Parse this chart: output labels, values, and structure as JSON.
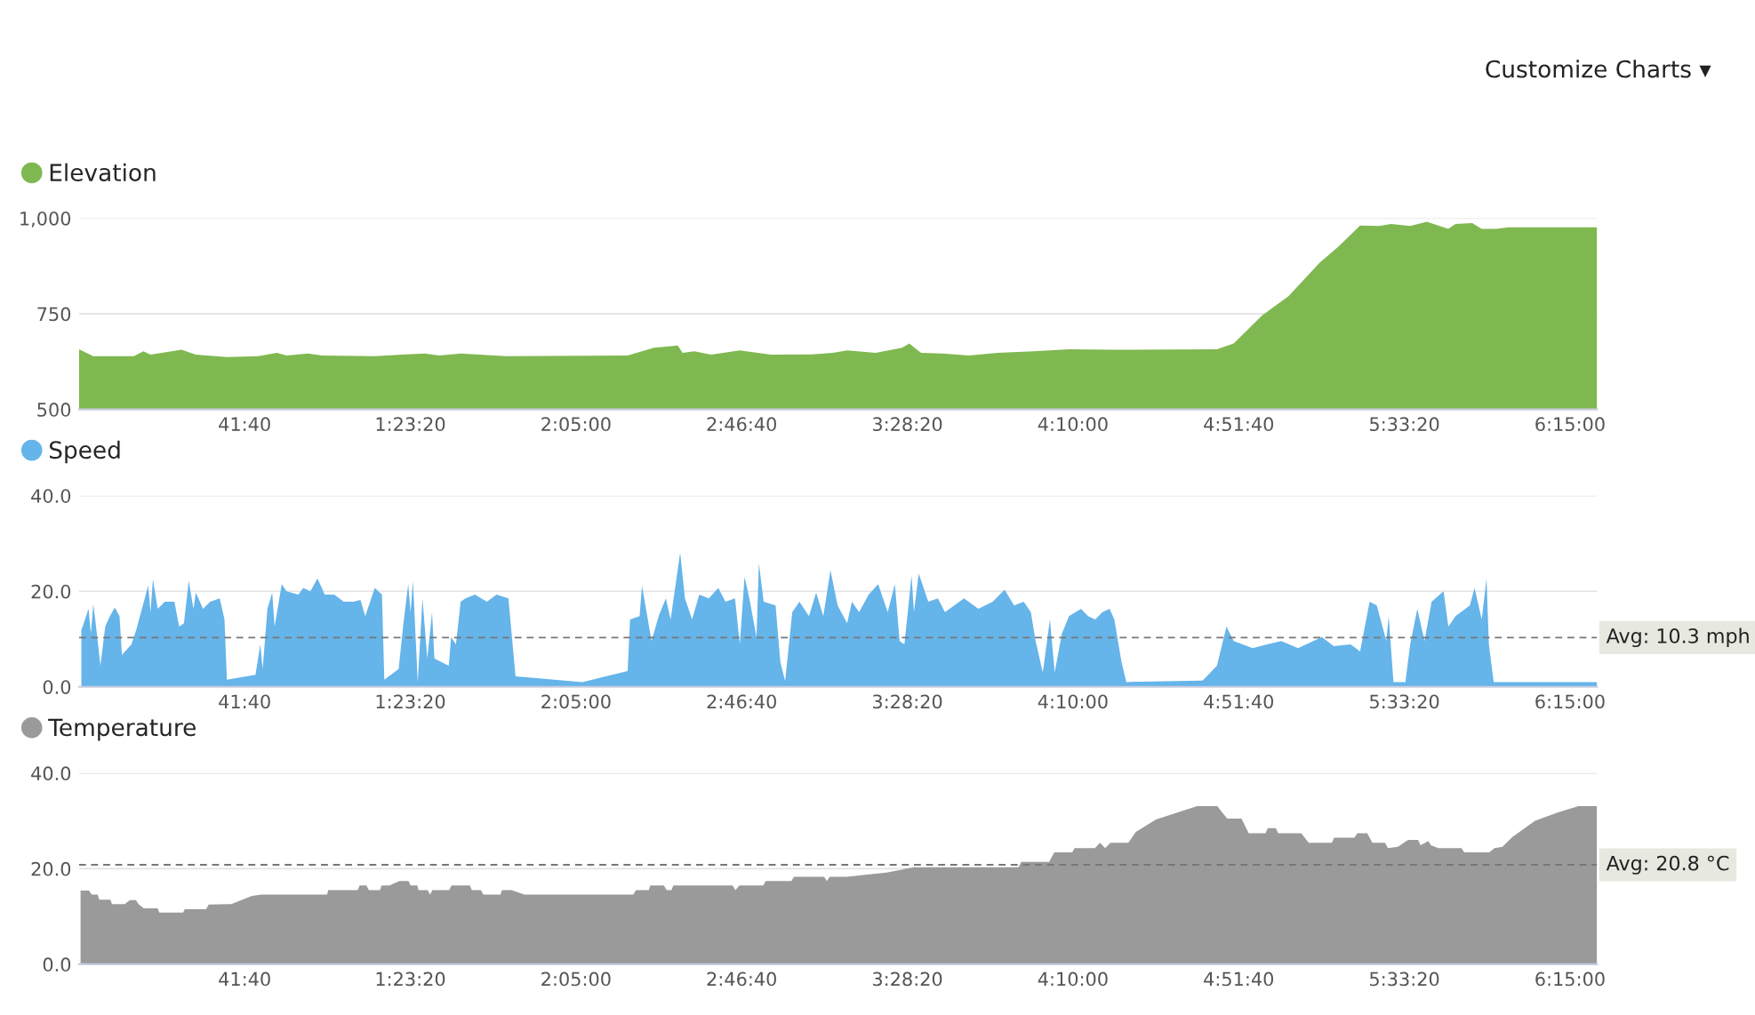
{
  "chart_data": [
    {
      "type": "area",
      "annotations": [
        "Customize Charts ▾"
      ],
      "legend": "top left",
      "grid": "y",
      "ylim": [
        500,
        1000
      ],
      "yticks": [
        {
          "value": 500,
          "label": "500"
        },
        {
          "value": 750,
          "label": "750"
        },
        {
          "value": 1000,
          "label": "1,000"
        }
      ],
      "xlim": [
        0,
        381.8
      ],
      "xticks": [
        {
          "value": 41.667,
          "label": "41:40"
        },
        {
          "value": 83.333,
          "label": "1:23:20"
        },
        {
          "value": 125,
          "label": "2:05:00"
        },
        {
          "value": 166.667,
          "label": "2:46:40"
        },
        {
          "value": 208.333,
          "label": "3:28:20"
        },
        {
          "value": 250,
          "label": "4:10:00"
        },
        {
          "value": 291.667,
          "label": "4:51:40"
        },
        {
          "value": 333.333,
          "label": "5:33:20"
        },
        {
          "value": 375,
          "label": "6:15:00"
        }
      ],
      "series": [
        {
          "name": "Elevation",
          "color": "#7fb850",
          "x": [
            0,
            3.6,
            13.8,
            16.2,
            18,
            25.8,
            29.4,
            37.2,
            45,
            49.8,
            52.2,
            57.6,
            61.2,
            74.4,
            82.2,
            87,
            90.6,
            96,
            107.4,
            138,
            144.6,
            150.6,
            151.8,
            154.8,
            159,
            166.2,
            174,
            184.2,
            189.6,
            193.2,
            200.4,
            207,
            208.8,
            211.8,
            217.2,
            223.8,
            231,
            240,
            249,
            260.4,
            286.2,
            290.4,
            297.6,
            304.2,
            312,
            316.8,
            322.2,
            327,
            330,
            334.8,
            339,
            344.4,
            346.2,
            350.4,
            352.8,
            356.4,
            359.4,
            381.8
          ],
          "values": [
            657,
            639,
            639,
            652,
            643,
            656,
            643,
            637,
            639,
            648,
            641,
            646,
            641,
            639,
            644,
            646,
            641,
            646,
            639,
            641,
            661,
            667,
            648,
            652,
            643,
            654,
            643,
            644,
            648,
            654,
            648,
            661,
            672,
            648,
            646,
            641,
            648,
            652,
            657,
            656,
            657,
            672,
            746,
            796,
            883,
            926,
            981,
            980,
            985,
            980,
            991,
            972,
            985,
            987,
            972,
            972,
            976,
            976
          ]
        }
      ]
    },
    {
      "type": "area",
      "legend": "top left",
      "grid": "y",
      "ylim": [
        0,
        40
      ],
      "yticks": [
        {
          "value": 0,
          "label": "0.0"
        },
        {
          "value": 20,
          "label": "20.0"
        },
        {
          "value": 40,
          "label": "40.0"
        }
      ],
      "xlim": [
        0,
        381.8
      ],
      "xticks": [
        {
          "value": 41.667,
          "label": "41:40"
        },
        {
          "value": 83.333,
          "label": "1:23:20"
        },
        {
          "value": 125,
          "label": "2:05:00"
        },
        {
          "value": 166.667,
          "label": "2:46:40"
        },
        {
          "value": 208.333,
          "label": "3:28:20"
        },
        {
          "value": 250,
          "label": "4:10:00"
        },
        {
          "value": 291.667,
          "label": "4:51:40"
        },
        {
          "value": 333.333,
          "label": "5:33:20"
        },
        {
          "value": 375,
          "label": "6:15:00"
        }
      ],
      "ref_lines": [
        {
          "axis": "y",
          "value": 10.3,
          "label": "Avg: 10.3 mph",
          "color": "#777777",
          "line_style": "dashed"
        }
      ],
      "series": [
        {
          "name": "Speed",
          "color": "#65b4ea",
          "x": [
            0.6,
            1.2,
            2.4,
            3,
            3.6,
            4.2,
            5.4,
            6.6,
            7.8,
            9,
            10.2,
            10.8,
            13.2,
            14.4,
            16.8,
            17.4,
            18,
            18.6,
            19.8,
            21.6,
            24,
            25.2,
            26.4,
            27.6,
            28.8,
            29.4,
            31.2,
            33,
            35.4,
            36.6,
            37.2,
            44.4,
            45.6,
            46.2,
            47.4,
            48.6,
            49.2,
            51,
            52.2,
            55.2,
            56.4,
            58.2,
            60,
            61.8,
            64.2,
            66.6,
            69,
            70.8,
            72,
            74.4,
            76.2,
            76.8,
            80.4,
            81.6,
            82.8,
            83.4,
            84,
            85.2,
            86.4,
            87.6,
            88.8,
            89.4,
            93,
            93.6,
            94.8,
            96,
            97.2,
            99.6,
            102.6,
            105,
            108,
            109.8,
            126.6,
            138,
            138.6,
            141,
            141.6,
            144,
            145.8,
            147.6,
            148.8,
            151.2,
            152.4,
            154.2,
            156,
            158.4,
            160.8,
            162.6,
            165,
            166.2,
            167.4,
            168.6,
            170.4,
            171,
            172.2,
            175.2,
            176.4,
            177.6,
            179.4,
            181.2,
            183.6,
            185.4,
            187.2,
            189,
            190.8,
            193.2,
            194.4,
            196.2,
            198.6,
            201,
            203.4,
            205.2,
            206.4,
            207.6,
            209.4,
            210,
            211.2,
            213.6,
            216,
            217.8,
            222.6,
            226.2,
            229.8,
            232.8,
            235.2,
            237.6,
            239.4,
            240.6,
            242.4,
            244.2,
            245.4,
            247.2,
            249,
            252,
            253.8,
            255.6,
            257.4,
            259.2,
            260.4,
            262.2,
            263.4,
            282.6,
            286.2,
            288.6,
            290.4,
            295.2,
            298.8,
            302.4,
            306.6,
            312.6,
            315.6,
            319.8,
            322.2,
            324.6,
            326.4,
            328.8,
            329.4,
            330.6,
            333.6,
            334.8,
            336.6,
            338.4,
            340.2,
            343.2,
            344.4,
            346.2,
            349.8,
            351,
            352.8,
            354,
            354.6,
            355.8,
            381.8
          ],
          "values": [
            11.9,
            13.3,
            16.3,
            11.1,
            17.3,
            13.3,
            4.4,
            12.6,
            14.8,
            16.6,
            14.8,
            6.7,
            8.9,
            11.9,
            19.3,
            21.2,
            15.6,
            22.5,
            16.3,
            17.8,
            17.8,
            12.6,
            13.3,
            22.2,
            16.3,
            19.7,
            16.3,
            17.8,
            18.5,
            14.1,
            1.5,
            2.5,
            8.9,
            3.7,
            16.3,
            19.7,
            12.6,
            21.5,
            20.0,
            19.3,
            20.7,
            20.0,
            22.7,
            19.3,
            19.3,
            17.8,
            17.8,
            18.2,
            14.8,
            20.7,
            19.3,
            1.5,
            3.7,
            13.3,
            21.5,
            15.6,
            22.2,
            1.0,
            18.5,
            5.9,
            15.6,
            5.9,
            4.4,
            10.4,
            8.9,
            17.8,
            18.5,
            19.3,
            17.8,
            19.3,
            18.5,
            2.2,
            1.0,
            3.3,
            14.1,
            14.8,
            21.2,
            9.6,
            14.8,
            18.5,
            14.1,
            28.1,
            18.5,
            14.1,
            19.3,
            18.5,
            20.7,
            17.8,
            18.5,
            8.9,
            23.0,
            18.5,
            10.4,
            25.9,
            17.8,
            17.0,
            5.2,
            1.2,
            15.6,
            17.8,
            14.8,
            19.7,
            14.8,
            24.4,
            17.0,
            13.3,
            17.8,
            15.6,
            19.3,
            21.5,
            15.6,
            21.5,
            9.6,
            8.9,
            23.3,
            15.6,
            23.7,
            17.8,
            18.5,
            15.6,
            18.5,
            16.3,
            17.8,
            20.3,
            17.0,
            17.8,
            15.6,
            9.6,
            3.0,
            14.1,
            3.0,
            11.1,
            14.8,
            16.3,
            14.8,
            14.1,
            15.6,
            16.3,
            14.1,
            5.2,
            1.0,
            1.3,
            4.4,
            12.6,
            9.6,
            8.1,
            8.9,
            9.6,
            8.1,
            10.4,
            8.5,
            8.9,
            7.4,
            17.8,
            17.0,
            9.6,
            14.8,
            1.0,
            1.0,
            8.9,
            16.3,
            9.6,
            17.8,
            20.0,
            12.6,
            14.8,
            17.0,
            20.7,
            14.1,
            22.7,
            8.9,
            1.0,
            1.0
          ]
        }
      ]
    },
    {
      "type": "area",
      "legend": "top left",
      "grid": "y",
      "ylim": [
        0,
        40
      ],
      "yticks": [
        {
          "value": 0,
          "label": "0.0"
        },
        {
          "value": 20,
          "label": "20.0"
        },
        {
          "value": 40,
          "label": "40.0"
        }
      ],
      "xlim": [
        0,
        381.8
      ],
      "xticks": [
        {
          "value": 41.667,
          "label": "41:40"
        },
        {
          "value": 83.333,
          "label": "1:23:20"
        },
        {
          "value": 125,
          "label": "2:05:00"
        },
        {
          "value": 166.667,
          "label": "2:46:40"
        },
        {
          "value": 208.333,
          "label": "3:28:20"
        },
        {
          "value": 250,
          "label": "4:10:00"
        },
        {
          "value": 291.667,
          "label": "4:51:40"
        },
        {
          "value": 333.333,
          "label": "5:33:20"
        },
        {
          "value": 375,
          "label": "6:15:00"
        }
      ],
      "ref_lines": [
        {
          "axis": "y",
          "value": 20.8,
          "label": "Avg: 20.8 °C",
          "color": "#777777",
          "line_style": "dashed"
        }
      ],
      "series": [
        {
          "name": "Temperature",
          "color": "#9a9a9a",
          "x": [
            0.4,
            2.5,
            3.2,
            4.7,
            5.1,
            7.9,
            8.3,
            11.5,
            12.8,
            14.3,
            15.1,
            16.3,
            19.8,
            20.2,
            26.2,
            26.6,
            32,
            32.6,
            38.3,
            43.5,
            46,
            62.4,
            62.7,
            70.1,
            70.6,
            72.3,
            72.9,
            75.7,
            76.1,
            78.1,
            80.6,
            82.9,
            83.4,
            85.1,
            85.4,
            87.7,
            88.3,
            88.9,
            93.1,
            93.7,
            98.3,
            98.8,
            101.1,
            101.7,
            106,
            106.4,
            108.8,
            112,
            139.4,
            140.1,
            143.3,
            143.7,
            147.1,
            147.8,
            149,
            149.5,
            164.4,
            165.1,
            166.1,
            172.1,
            172.7,
            179.2,
            179.8,
            187.4,
            188.1,
            188.8,
            193,
            203.1,
            210.1,
            236.3,
            237,
            244,
            245.3,
            249.8,
            250.4,
            255.5,
            256.8,
            258.1,
            259.4,
            263.9,
            265.8,
            270.9,
            281.2,
            286.3,
            287.5,
            288.8,
            292.4,
            293.3,
            294.2,
            298.4,
            299,
            301,
            301.6,
            307.4,
            309.3,
            315.1,
            315.7,
            320.8,
            321.5,
            324,
            325.3,
            328.5,
            329.2,
            331.7,
            334.3,
            336.8,
            337.4,
            339.4,
            340,
            341.9,
            347.7,
            348.4,
            354.7,
            356,
            358,
            360.5,
            366.2,
            372,
            377.1,
            381.8
          ],
          "values": [
            15.4,
            15.4,
            14.6,
            14.6,
            13.5,
            13.5,
            12.6,
            12.6,
            13.4,
            13.4,
            12.5,
            11.7,
            11.7,
            10.8,
            10.8,
            11.5,
            11.5,
            12.5,
            12.6,
            14.3,
            14.6,
            14.6,
            15.5,
            15.5,
            16.5,
            16.5,
            15.5,
            15.5,
            16.5,
            16.5,
            17.4,
            17.4,
            16.5,
            16.5,
            15.5,
            15.5,
            14.6,
            15.5,
            15.5,
            16.5,
            16.5,
            15.5,
            15.5,
            14.6,
            14.6,
            15.5,
            15.5,
            14.6,
            14.6,
            15.5,
            15.5,
            16.5,
            16.5,
            15.5,
            15.5,
            16.5,
            16.5,
            15.5,
            16.5,
            16.5,
            17.4,
            17.4,
            18.3,
            18.3,
            17.4,
            18.3,
            18.3,
            19.2,
            20.3,
            20.3,
            21.4,
            21.4,
            23.4,
            23.4,
            24.3,
            24.3,
            25.4,
            24.3,
            25.4,
            25.4,
            27.7,
            30.3,
            33.1,
            33.1,
            31.8,
            30.5,
            30.5,
            28.9,
            27.4,
            27.4,
            28.5,
            28.5,
            27.4,
            27.4,
            25.4,
            25.4,
            26.5,
            26.5,
            27.4,
            27.4,
            25.4,
            25.4,
            24.3,
            24.6,
            26.0,
            26.0,
            24.9,
            25.8,
            24.9,
            24.3,
            24.3,
            23.4,
            23.4,
            24.3,
            24.6,
            26.6,
            30.0,
            31.8,
            33.1,
            33.1
          ]
        }
      ]
    }
  ]
}
